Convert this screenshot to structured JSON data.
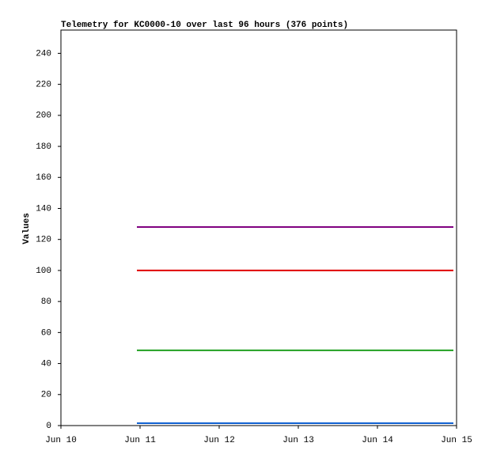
{
  "chart_data": {
    "type": "line",
    "title": "Telemetry for KC0000-10 over last 96 hours (376 points)",
    "y_label": "Values",
    "x": [
      10.96,
      14.96
    ],
    "series": [
      {
        "color": "#800080",
        "values": [
          128,
          128
        ]
      },
      {
        "color": "#e00000",
        "values": [
          100,
          100
        ]
      },
      {
        "color": "#20a020",
        "values": [
          48.5,
          48.5
        ]
      },
      {
        "color": "#1060d0",
        "values": [
          1.5,
          1.5
        ]
      }
    ],
    "xlim": [
      10,
      15
    ],
    "xticks": [
      {
        "value": 10,
        "label": "Jun 10"
      },
      {
        "value": 11,
        "label": "Jun 11"
      },
      {
        "value": 12,
        "label": "Jun 12"
      },
      {
        "value": 13,
        "label": "Jun 13"
      },
      {
        "value": 14,
        "label": "Jun 14"
      },
      {
        "value": 15,
        "label": "Jun 15"
      }
    ],
    "ylim": [
      0,
      255
    ],
    "yticks": [
      0,
      20,
      40,
      60,
      80,
      100,
      120,
      140,
      160,
      180,
      200,
      220,
      240
    ],
    "grid": false
  }
}
